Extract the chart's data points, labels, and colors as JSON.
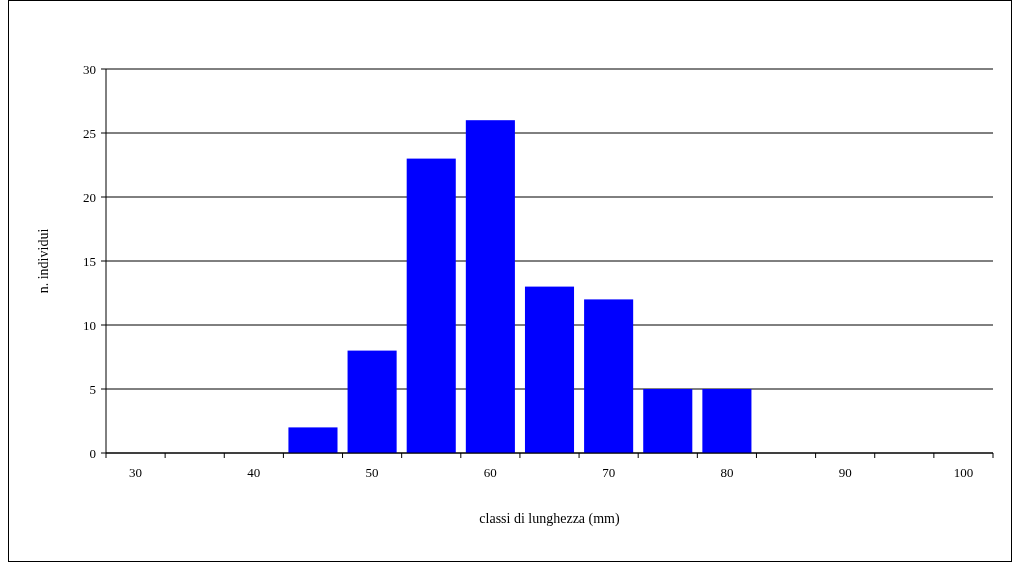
{
  "chart_data": {
    "type": "bar",
    "xlabel": "classi di lunghezza (mm)",
    "ylabel": "n. individui",
    "categories": [
      "30",
      null,
      "40",
      null,
      "50",
      null,
      "60",
      null,
      "70",
      null,
      "80",
      null,
      "90",
      null,
      "100"
    ],
    "values": [
      0,
      0,
      0,
      2,
      8,
      23,
      26,
      13,
      12,
      5,
      5,
      0,
      0,
      0,
      0
    ],
    "color": "#0000ff",
    "ylim": [
      0,
      30
    ],
    "yticks": [
      0,
      5,
      10,
      15,
      20,
      25,
      30
    ],
    "grid": "y"
  }
}
